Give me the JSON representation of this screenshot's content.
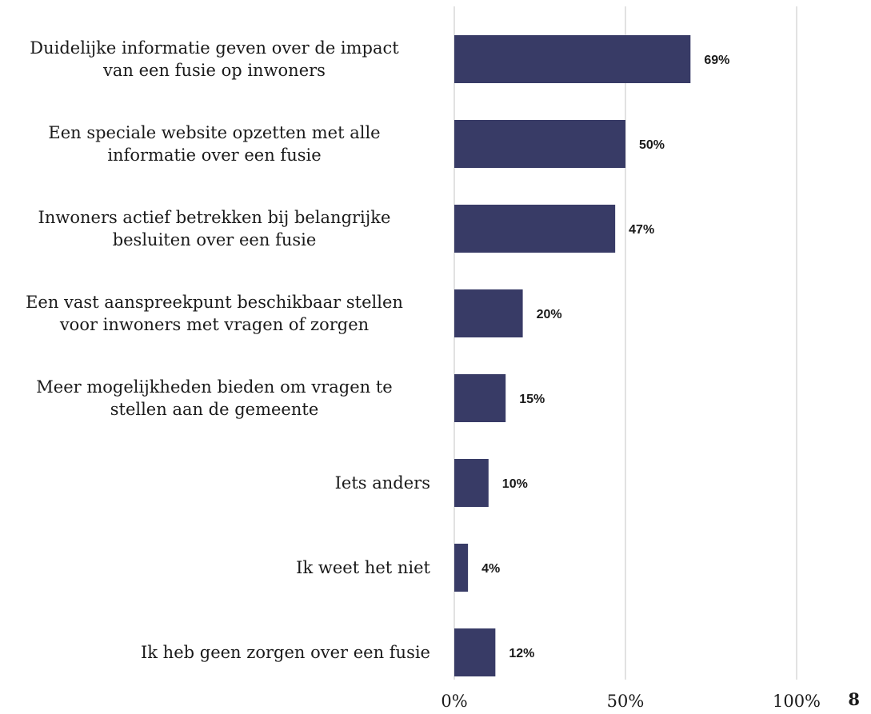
{
  "page_number": "8",
  "chart_data": {
    "type": "bar",
    "orientation": "horizontal",
    "categories": [
      [
        "Duidelijke informatie geven over de impact",
        "van een fusie op inwoners"
      ],
      [
        "Een speciale website opzetten met alle",
        "informatie over een fusie"
      ],
      [
        "Inwoners actief betrekken bij belangrijke",
        "besluiten over een fusie"
      ],
      [
        "Een vast aanspreekpunt beschikbaar stellen",
        "voor inwoners met vragen of zorgen"
      ],
      [
        "Meer mogelijkheden bieden om vragen te",
        "stellen aan de gemeente"
      ],
      [
        "Iets anders"
      ],
      [
        "Ik weet het niet"
      ],
      [
        "Ik heb geen zorgen over een fusie"
      ]
    ],
    "values": [
      69,
      50,
      47,
      20,
      15,
      10,
      4,
      12
    ],
    "value_labels": [
      "69%",
      "50%",
      "47%",
      "20%",
      "15%",
      "10%",
      "4%",
      "12%"
    ],
    "xlim": [
      0,
      100
    ],
    "ticks": [
      0,
      50,
      100
    ],
    "tick_labels": [
      "0%",
      "50%",
      "100%"
    ],
    "grid": true,
    "bar_color": "#383B66",
    "grid_color": "#d9d9d9"
  }
}
